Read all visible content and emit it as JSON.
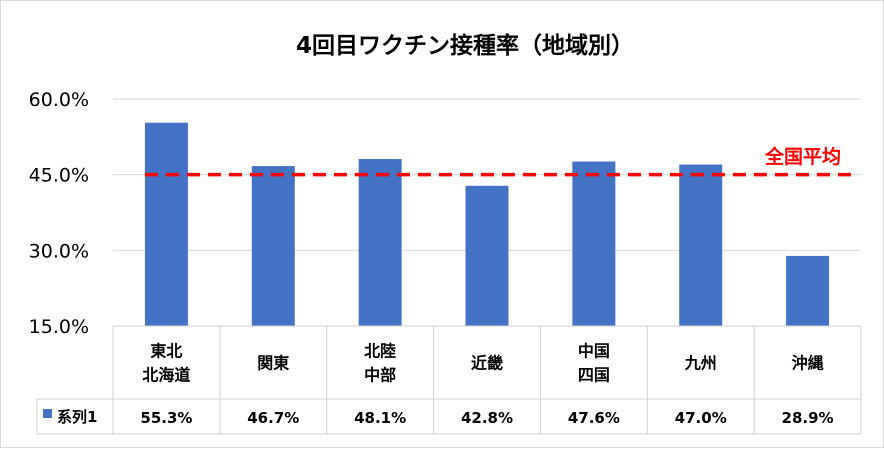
{
  "chart_data": {
    "type": "bar",
    "title": "4回目ワクチン接種率（地域別）",
    "categories": [
      [
        "東北",
        "北海道"
      ],
      [
        "関東"
      ],
      [
        "北陸",
        "中部"
      ],
      [
        "近畿"
      ],
      [
        "中国",
        "四国"
      ],
      [
        "九州"
      ],
      [
        "沖縄"
      ]
    ],
    "series": [
      {
        "name": "系列1",
        "color": "#4472c4",
        "values": [
          55.3,
          46.7,
          48.1,
          42.8,
          47.6,
          47.0,
          28.9
        ],
        "labels": [
          "55.3%",
          "46.7%",
          "48.1%",
          "42.8%",
          "47.6%",
          "47.0%",
          "28.9%"
        ]
      }
    ],
    "ylim": [
      15,
      60
    ],
    "yticks": [
      15,
      30,
      45,
      60
    ],
    "ytick_labels": [
      "15.0%",
      "30.0%",
      "45.0%",
      "60.0%"
    ],
    "grid": true,
    "data_table": true,
    "reference_line": {
      "value": 45,
      "label": "全国平均",
      "color": "#ff0000",
      "style": "dashed"
    }
  }
}
